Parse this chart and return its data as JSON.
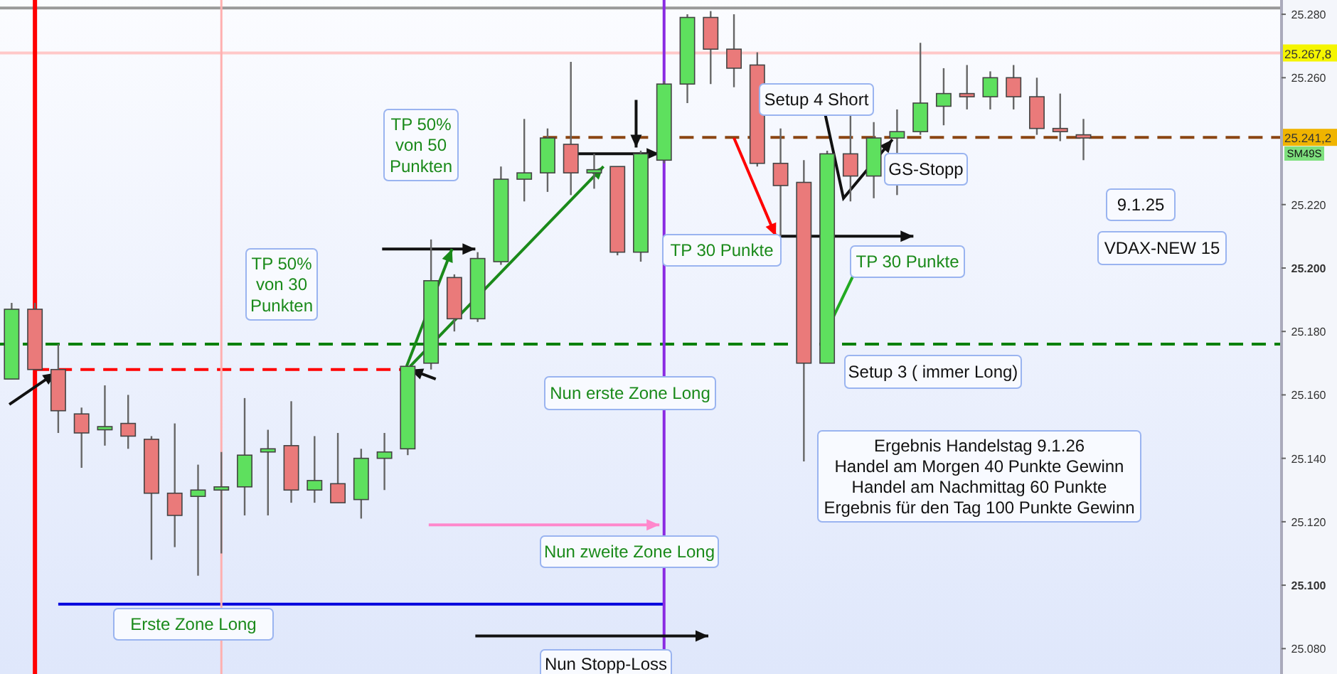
{
  "chart_data": {
    "type": "candlestick",
    "categories": [
      null,
      null,
      null,
      null,
      null,
      null,
      null,
      null,
      null,
      null,
      null,
      null,
      null,
      null,
      null,
      null,
      null,
      null,
      null,
      null,
      null,
      null,
      null,
      null,
      null,
      null,
      null,
      null,
      null,
      null,
      null,
      null,
      null,
      null,
      null,
      null,
      null,
      null,
      null,
      null,
      null,
      null,
      null,
      null,
      null,
      null,
      null,
      null,
      null,
      null,
      null,
      null,
      null,
      null,
      null
    ],
    "ohlc": [
      [
        25165,
        25189,
        25165,
        25187
      ],
      [
        25187,
        25189,
        25168,
        25168
      ],
      [
        25168,
        25176,
        25148,
        25155
      ],
      [
        25154,
        25156,
        25137,
        25148
      ],
      [
        25149,
        25163,
        25144,
        25150
      ],
      [
        25151,
        25160,
        25143,
        25147
      ],
      [
        25146,
        25147,
        25108,
        25129
      ],
      [
        25129,
        25151,
        25112,
        25122
      ],
      [
        25128,
        25138,
        25103,
        25130
      ],
      [
        25130,
        25142,
        25110,
        25131
      ],
      [
        25131,
        25159,
        25122,
        25141
      ],
      [
        25142,
        25149,
        25122,
        25143
      ],
      [
        25144,
        25158,
        25126,
        25130
      ],
      [
        25130,
        25147,
        25126,
        25133
      ],
      [
        25132,
        25148,
        25126,
        25126
      ],
      [
        25127,
        25143,
        25121,
        25140
      ],
      [
        25140,
        25148,
        25130,
        25142
      ],
      [
        25143,
        25169,
        25141,
        25169
      ],
      [
        25170,
        25209,
        25168,
        25196
      ],
      [
        25197,
        25198,
        25180,
        25184
      ],
      [
        25184,
        25205,
        25183,
        25203
      ],
      [
        25202,
        25232,
        25201,
        25228
      ],
      [
        25228,
        25247,
        25221,
        25230
      ],
      [
        25230,
        25244,
        25224,
        25241
      ],
      [
        25239,
        25265,
        25223,
        25230
      ],
      [
        25230,
        25236,
        25225,
        25231
      ],
      [
        25232,
        25232,
        25204,
        25205
      ],
      [
        25205,
        25237,
        25202,
        25236
      ],
      [
        25234,
        25259,
        25233,
        25258
      ],
      [
        25258,
        25280,
        25252,
        25279
      ],
      [
        25279,
        25281,
        25258,
        25269
      ],
      [
        25269,
        25280,
        25257,
        25263
      ],
      [
        25264,
        25268,
        25232,
        25233
      ],
      [
        25233,
        25244,
        25210,
        25226
      ],
      [
        25227,
        25234,
        25139,
        25170
      ],
      [
        25170,
        25237,
        25170,
        25236
      ],
      [
        25236,
        25249,
        25221,
        25229
      ],
      [
        25229,
        25246,
        25222,
        25241
      ],
      [
        25241,
        25250,
        25223,
        25243
      ],
      [
        25243,
        25271,
        25242,
        25252
      ],
      [
        25251,
        25263,
        25245,
        25255
      ],
      [
        25255,
        25264,
        25250,
        25254
      ],
      [
        25254,
        25262,
        25250,
        25260
      ],
      [
        25260,
        25264,
        25250,
        25254
      ],
      [
        25254,
        25260,
        25242,
        25244
      ],
      [
        25244,
        25255,
        25240,
        25243
      ],
      [
        25242,
        25247,
        25234,
        25241
      ],
      null,
      null,
      null,
      null,
      null,
      null,
      null,
      null
    ],
    "ylim": [
      25072,
      25284.5
    ],
    "yticks": [
      {
        "value": 25080,
        "label": "25.080"
      },
      {
        "value": 25100,
        "label": "25.100"
      },
      {
        "value": 25120,
        "label": "25.120"
      },
      {
        "value": 25140,
        "label": "25.140"
      },
      {
        "value": 25160,
        "label": "25.160"
      },
      {
        "value": 25180,
        "label": "25.180"
      },
      {
        "value": 25200,
        "label": "25.200"
      },
      {
        "value": 25220,
        "label": "25.220"
      },
      {
        "value": 25260,
        "label": "25.260"
      },
      {
        "value": 25280,
        "label": "25.280"
      }
    ],
    "tick_labels": "y",
    "ref_lines": [
      {
        "axis": "y",
        "value": 25267.8,
        "label": "25.267,8",
        "color": "#ffc8c8",
        "line_style": "solid"
      },
      {
        "axis": "y",
        "value": 25176,
        "label": null,
        "color": "#008000",
        "line_style": "dashed"
      },
      {
        "axis": "y",
        "value": 25282,
        "label": null,
        "color": "#999999",
        "line_style": "solid"
      },
      {
        "axis": "y",
        "value": 25168,
        "label": null,
        "color": "#ff0000",
        "line_style": "dashed"
      },
      {
        "axis": "y",
        "value": 25094,
        "label": null,
        "color": "#0000dd",
        "line_style": "solid"
      },
      {
        "axis": "y",
        "value": 25241.2,
        "label": "25.241,2",
        "color": "#8b4513",
        "line_style": "dashed"
      }
    ],
    "annotations": [
      "TP 50%\nvon 50\nPunkten",
      "TP 50%\nvon 30\nPunkten",
      "Nun erste Zone Long",
      "Nun zweite Zone Long",
      "Erste Zone Long",
      "Nun Stopp-Loss",
      "TP 30 Punkte",
      "TP 30 Punkte",
      "Setup 4 Short",
      "GS-Stopp",
      "Setup 3 ( immer Long)",
      "Ergebnis Handelstag 9.1.26\nHandel am Morgen 40 Punkte Gewinn\nHandel am Nachmittag 60 Punkte\nErgebnis für den Tag 100 Punkte Gewinn",
      "9.1.25",
      "VDAX-NEW 15",
      "SM49S"
    ]
  }
}
